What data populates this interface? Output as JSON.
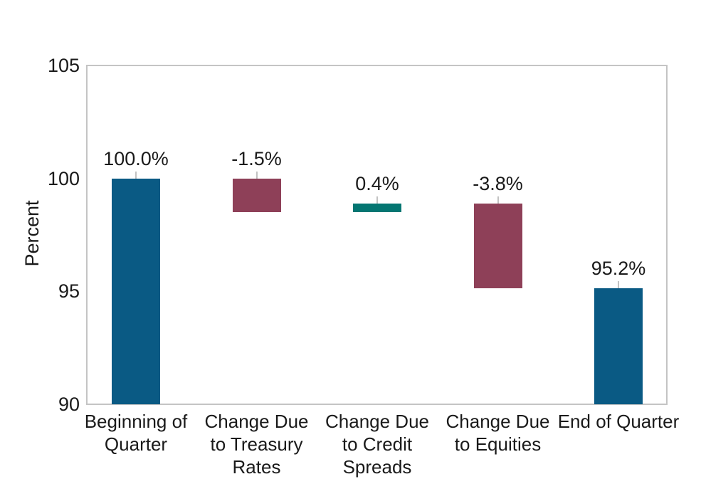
{
  "figure": {
    "background_color": "#ffffff",
    "text_color": "#1a1a1a"
  },
  "chart_data": {
    "type": "bar",
    "subtype": "waterfall",
    "title": "",
    "xlabel": "",
    "ylabel": "Percent",
    "ylim": [
      90,
      105
    ],
    "yticks": [
      90,
      95,
      100,
      105
    ],
    "grid": false,
    "legend": false,
    "plot_border_color": "#c4c4c4",
    "connector_tick_color": "#c2c2c2",
    "categories": [
      "Beginning of Quarter",
      "Change Due to Treasury Rates",
      "Change Due to Credit Spreads",
      "Change Due to Equities",
      "End of Quarter"
    ],
    "bars": [
      {
        "category_lines": [
          "Beginning of",
          "Quarter"
        ],
        "value_label": "100.0%",
        "value": 100.0,
        "segment_start": 90.0,
        "segment_end": 100.0,
        "kind": "total"
      },
      {
        "category_lines": [
          "Change Due",
          "to Treasury",
          "Rates"
        ],
        "value_label": "-1.5%",
        "value": -1.5,
        "segment_start": 100.0,
        "segment_end": 98.5,
        "kind": "decrease"
      },
      {
        "category_lines": [
          "Change Due",
          "to Credit",
          "Spreads"
        ],
        "value_label": "0.4%",
        "value": 0.4,
        "segment_start": 98.5,
        "segment_end": 98.9,
        "kind": "increase"
      },
      {
        "category_lines": [
          "Change Due",
          "to Equities"
        ],
        "value_label": "-3.8%",
        "value": -3.8,
        "segment_start": 98.9,
        "segment_end": 95.15,
        "kind": "decrease"
      },
      {
        "category_lines": [
          "End of Quarter"
        ],
        "value_label": "95.2%",
        "value": 95.2,
        "segment_start": 90.0,
        "segment_end": 95.15,
        "kind": "total"
      }
    ],
    "colors": {
      "total": "#0a5a84",
      "increase": "#047672",
      "decrease": "#8e4058"
    }
  }
}
